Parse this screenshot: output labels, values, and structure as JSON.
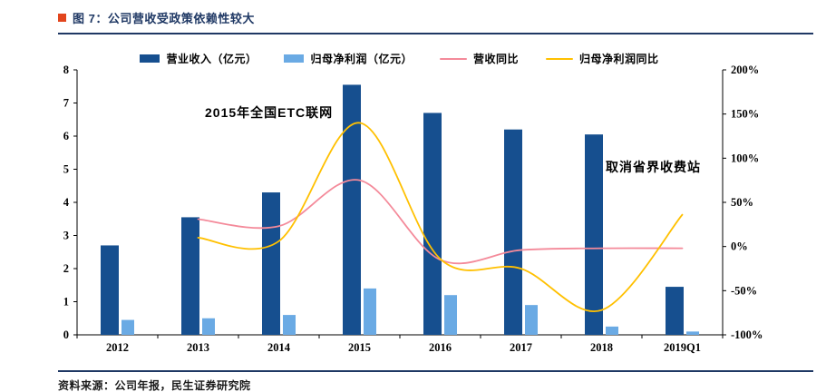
{
  "header": {
    "title": "图 7：公司营收受政策依赖性较大"
  },
  "footer": {
    "source": "资料来源：公司年报，民生证券研究院"
  },
  "colors": {
    "navy": "#1F3864",
    "accent_red": "#E2451D",
    "axis": "#000000",
    "bar_dark": "#164F8F",
    "bar_light": "#6AAAE4",
    "line_pink": "#F48A9A",
    "line_yellow": "#FFC000"
  },
  "chart_data": {
    "type": "bar",
    "subtype": "combo-bar-line",
    "categories": [
      "2012",
      "2013",
      "2014",
      "2015",
      "2016",
      "2017",
      "2018",
      "2019Q1"
    ],
    "bar_series": [
      {
        "name": "营业收入（亿元）",
        "color": "#164F8F",
        "axis": "left",
        "values": [
          2.7,
          3.55,
          4.3,
          7.55,
          6.7,
          6.2,
          6.05,
          1.45
        ]
      },
      {
        "name": "归母净利润（亿元）",
        "color": "#6AAAE4",
        "axis": "left",
        "values": [
          0.45,
          0.5,
          0.6,
          1.4,
          1.2,
          0.9,
          0.25,
          0.1
        ]
      }
    ],
    "line_series": [
      {
        "name": "营收同比",
        "color": "#F48A9A",
        "axis": "right",
        "values": [
          null,
          31,
          23,
          75,
          -15,
          -4,
          -2,
          -2
        ]
      },
      {
        "name": "归母净利润同比",
        "color": "#FFC000",
        "axis": "right",
        "values": [
          null,
          10,
          6,
          140,
          -14,
          -25,
          -72,
          36
        ]
      }
    ],
    "left_axis": {
      "min": 0,
      "max": 8,
      "ticks": [
        0,
        1,
        2,
        3,
        4,
        5,
        6,
        7,
        8
      ]
    },
    "right_axis": {
      "min": -100,
      "max": 200,
      "ticks": [
        200,
        150,
        100,
        50,
        0,
        -50,
        -100
      ],
      "suffix": "%"
    },
    "grid": false,
    "legend_position": "top",
    "annotations": [
      {
        "text": "2015年全国ETC联网"
      },
      {
        "text": "取消省界收费站"
      }
    ]
  }
}
